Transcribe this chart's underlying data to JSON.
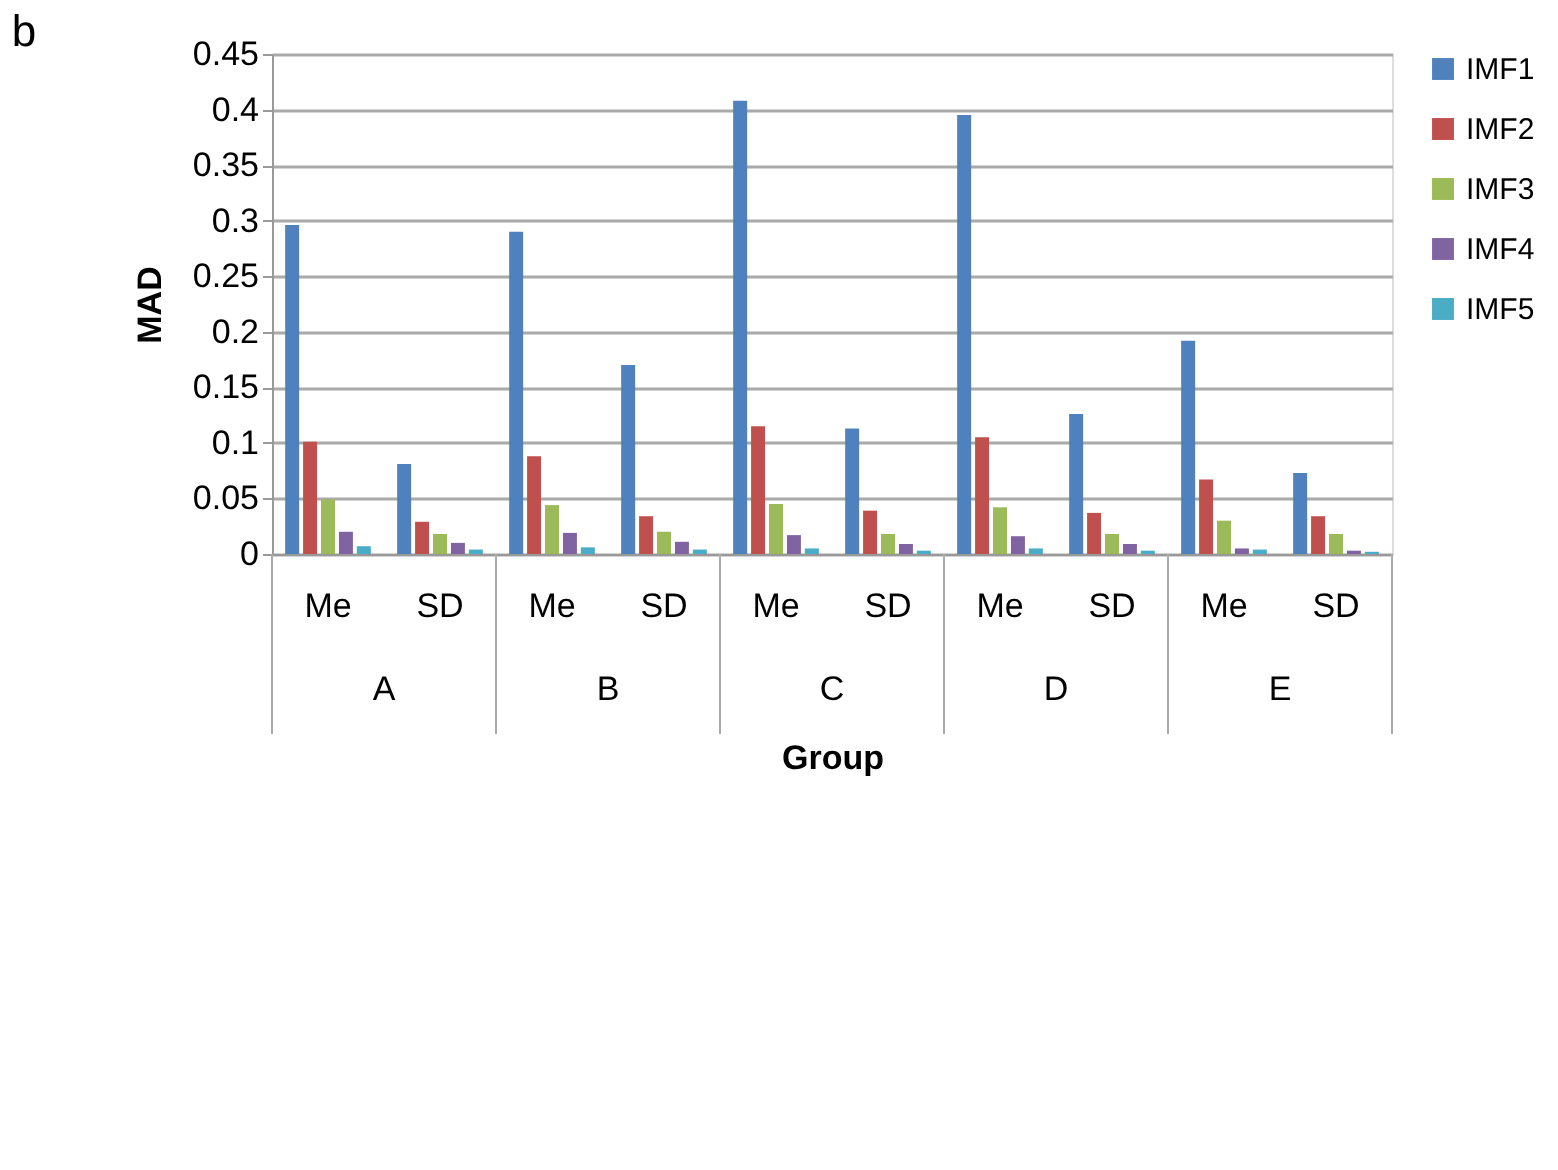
{
  "chart_data": {
    "type": "bar",
    "title": "b",
    "xlabel": "Group",
    "ylabel": "MAD",
    "categories": [
      "Me",
      "SD",
      "Me",
      "SD",
      "Me",
      "SD",
      "Me",
      "SD",
      "Me",
      "SD"
    ],
    "series": [
      {
        "name": "IMF1",
        "color": "#4f81bd",
        "values": [
          0.296,
          0.081,
          0.29,
          0.17,
          0.408,
          0.113,
          0.395,
          0.126,
          0.192,
          0.073
        ]
      },
      {
        "name": "IMF2",
        "color": "#c0504d",
        "values": [
          0.101,
          0.029,
          0.088,
          0.034,
          0.115,
          0.039,
          0.105,
          0.037,
          0.067,
          0.034
        ]
      },
      {
        "name": "IMF3",
        "color": "#9bbb59",
        "values": [
          0.049,
          0.018,
          0.044,
          0.02,
          0.045,
          0.018,
          0.042,
          0.018,
          0.03,
          0.018
        ]
      },
      {
        "name": "IMF4",
        "color": "#8064a2",
        "values": [
          0.02,
          0.01,
          0.019,
          0.011,
          0.017,
          0.009,
          0.016,
          0.009,
          0.005,
          0.003
        ]
      },
      {
        "name": "IMF5",
        "color": "#4bacc6",
        "values": [
          0.007,
          0.004,
          0.006,
          0.004,
          0.005,
          0.003,
          0.005,
          0.003,
          0.004,
          0.002
        ]
      }
    ],
    "annotations": [
      "A",
      "B",
      "C",
      "D",
      "E"
    ],
    "ylim": [
      0,
      0.45
    ],
    "yticks": [
      0,
      0.05,
      0.1,
      0.15,
      0.2,
      0.25,
      0.3,
      0.35,
      0.4,
      0.45
    ],
    "grid": "y",
    "legend": "right"
  }
}
